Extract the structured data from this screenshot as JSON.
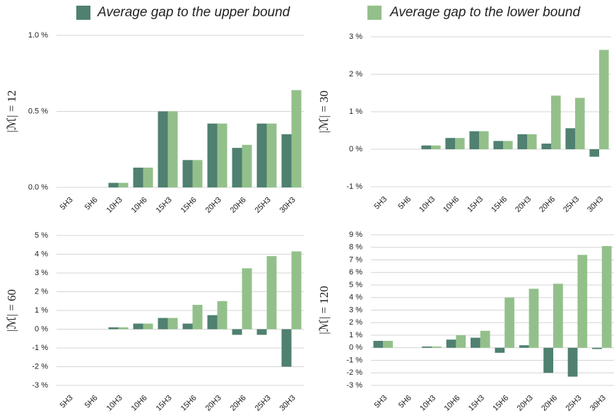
{
  "chart_data": [
    {
      "type": "bar",
      "ylabel": "|ℳ| = 12",
      "categories": [
        "5H3",
        "5H6",
        "10H3",
        "10H6",
        "15H3",
        "15H6",
        "20H3",
        "20H6",
        "25H3",
        "30H3"
      ],
      "series": [
        {
          "name": "Average gap to the upper bound",
          "color": "#4f8070",
          "values": [
            0,
            0,
            0.03,
            0.13,
            0.5,
            0.18,
            0.42,
            0.26,
            0.42,
            0.35
          ]
        },
        {
          "name": "Average gap to the lower bound",
          "color": "#93c08a",
          "values": [
            0,
            0,
            0.03,
            0.13,
            0.5,
            0.18,
            0.42,
            0.28,
            0.42,
            0.64
          ]
        }
      ],
      "ylim": [
        0,
        1
      ],
      "yticks": [
        {
          "value": 0,
          "label": "0.0 %"
        },
        {
          "value": 0.5,
          "label": "0.5 %"
        },
        {
          "value": 1,
          "label": "1.0 %"
        }
      ],
      "grid": true
    },
    {
      "type": "bar",
      "ylabel": "|ℳ| = 30",
      "categories": [
        "5H3",
        "5H6",
        "10H3",
        "10H6",
        "15H3",
        "15H6",
        "20H3",
        "20H6",
        "25H3",
        "30H3"
      ],
      "series": [
        {
          "color": "#4f8070",
          "values": [
            0,
            0,
            0.1,
            0.3,
            0.48,
            0.22,
            0.4,
            0.15,
            0.56,
            -0.2
          ]
        },
        {
          "color": "#93c08a",
          "values": [
            0,
            0,
            0.1,
            0.3,
            0.48,
            0.22,
            0.4,
            1.43,
            1.37,
            2.65
          ]
        }
      ],
      "ylim": [
        -1,
        3
      ],
      "yticks": [
        {
          "value": -1,
          "label": "-1 %"
        },
        {
          "value": 0,
          "label": "0 %"
        },
        {
          "value": 1,
          "label": "1 %"
        },
        {
          "value": 2,
          "label": "2 %"
        },
        {
          "value": 3,
          "label": "3 %"
        }
      ],
      "grid": true
    },
    {
      "type": "bar",
      "ylabel": "|ℳ| = 60",
      "categories": [
        "5H3",
        "5H6",
        "10H3",
        "10H6",
        "15H3",
        "15H6",
        "20H3",
        "20H6",
        "25H3",
        "30H3"
      ],
      "series": [
        {
          "color": "#4f8070",
          "values": [
            0,
            0,
            0.1,
            0.3,
            0.6,
            0.3,
            0.75,
            -0.3,
            -0.3,
            -2.0
          ]
        },
        {
          "color": "#93c08a",
          "values": [
            0,
            0,
            0.1,
            0.3,
            0.6,
            1.3,
            1.5,
            3.25,
            3.9,
            4.15
          ]
        }
      ],
      "ylim": [
        -3,
        5
      ],
      "yticks": [
        {
          "value": -3,
          "label": "-3 %"
        },
        {
          "value": -2,
          "label": "-2 %"
        },
        {
          "value": -1,
          "label": "-1 %"
        },
        {
          "value": 0,
          "label": "0 %"
        },
        {
          "value": 1,
          "label": "1 %"
        },
        {
          "value": 2,
          "label": "2 %"
        },
        {
          "value": 3,
          "label": "3 %"
        },
        {
          "value": 4,
          "label": "4 %"
        },
        {
          "value": 5,
          "label": "5 %"
        }
      ],
      "grid": true
    },
    {
      "type": "bar",
      "ylabel": "|ℳ| = 120",
      "categories": [
        "5H3",
        "5H6",
        "10H3",
        "10H6",
        "15H3",
        "15H6",
        "20H3",
        "20H6",
        "25H3",
        "30H3"
      ],
      "series": [
        {
          "color": "#4f8070",
          "values": [
            0.55,
            0,
            0.1,
            0.65,
            0.8,
            -0.4,
            0.2,
            -2.0,
            -2.3,
            -0.1
          ]
        },
        {
          "color": "#93c08a",
          "values": [
            0.55,
            0,
            0.1,
            1.0,
            1.35,
            4.0,
            4.7,
            5.1,
            7.4,
            8.1
          ]
        }
      ],
      "ylim": [
        -3,
        9
      ],
      "yticks": [
        {
          "value": -3,
          "label": "-3 %"
        },
        {
          "value": -2,
          "label": "-2 %"
        },
        {
          "value": -1,
          "label": "-1 %"
        },
        {
          "value": 0,
          "label": "0 %"
        },
        {
          "value": 1,
          "label": "1 %"
        },
        {
          "value": 2,
          "label": "2 %"
        },
        {
          "value": 3,
          "label": "3 %"
        },
        {
          "value": 4,
          "label": "4 %"
        },
        {
          "value": 5,
          "label": "5 %"
        },
        {
          "value": 6,
          "label": "6 %"
        },
        {
          "value": 7,
          "label": "7 %"
        },
        {
          "value": 8,
          "label": "8 %"
        },
        {
          "value": 9,
          "label": "9 %"
        }
      ],
      "grid": true
    }
  ]
}
